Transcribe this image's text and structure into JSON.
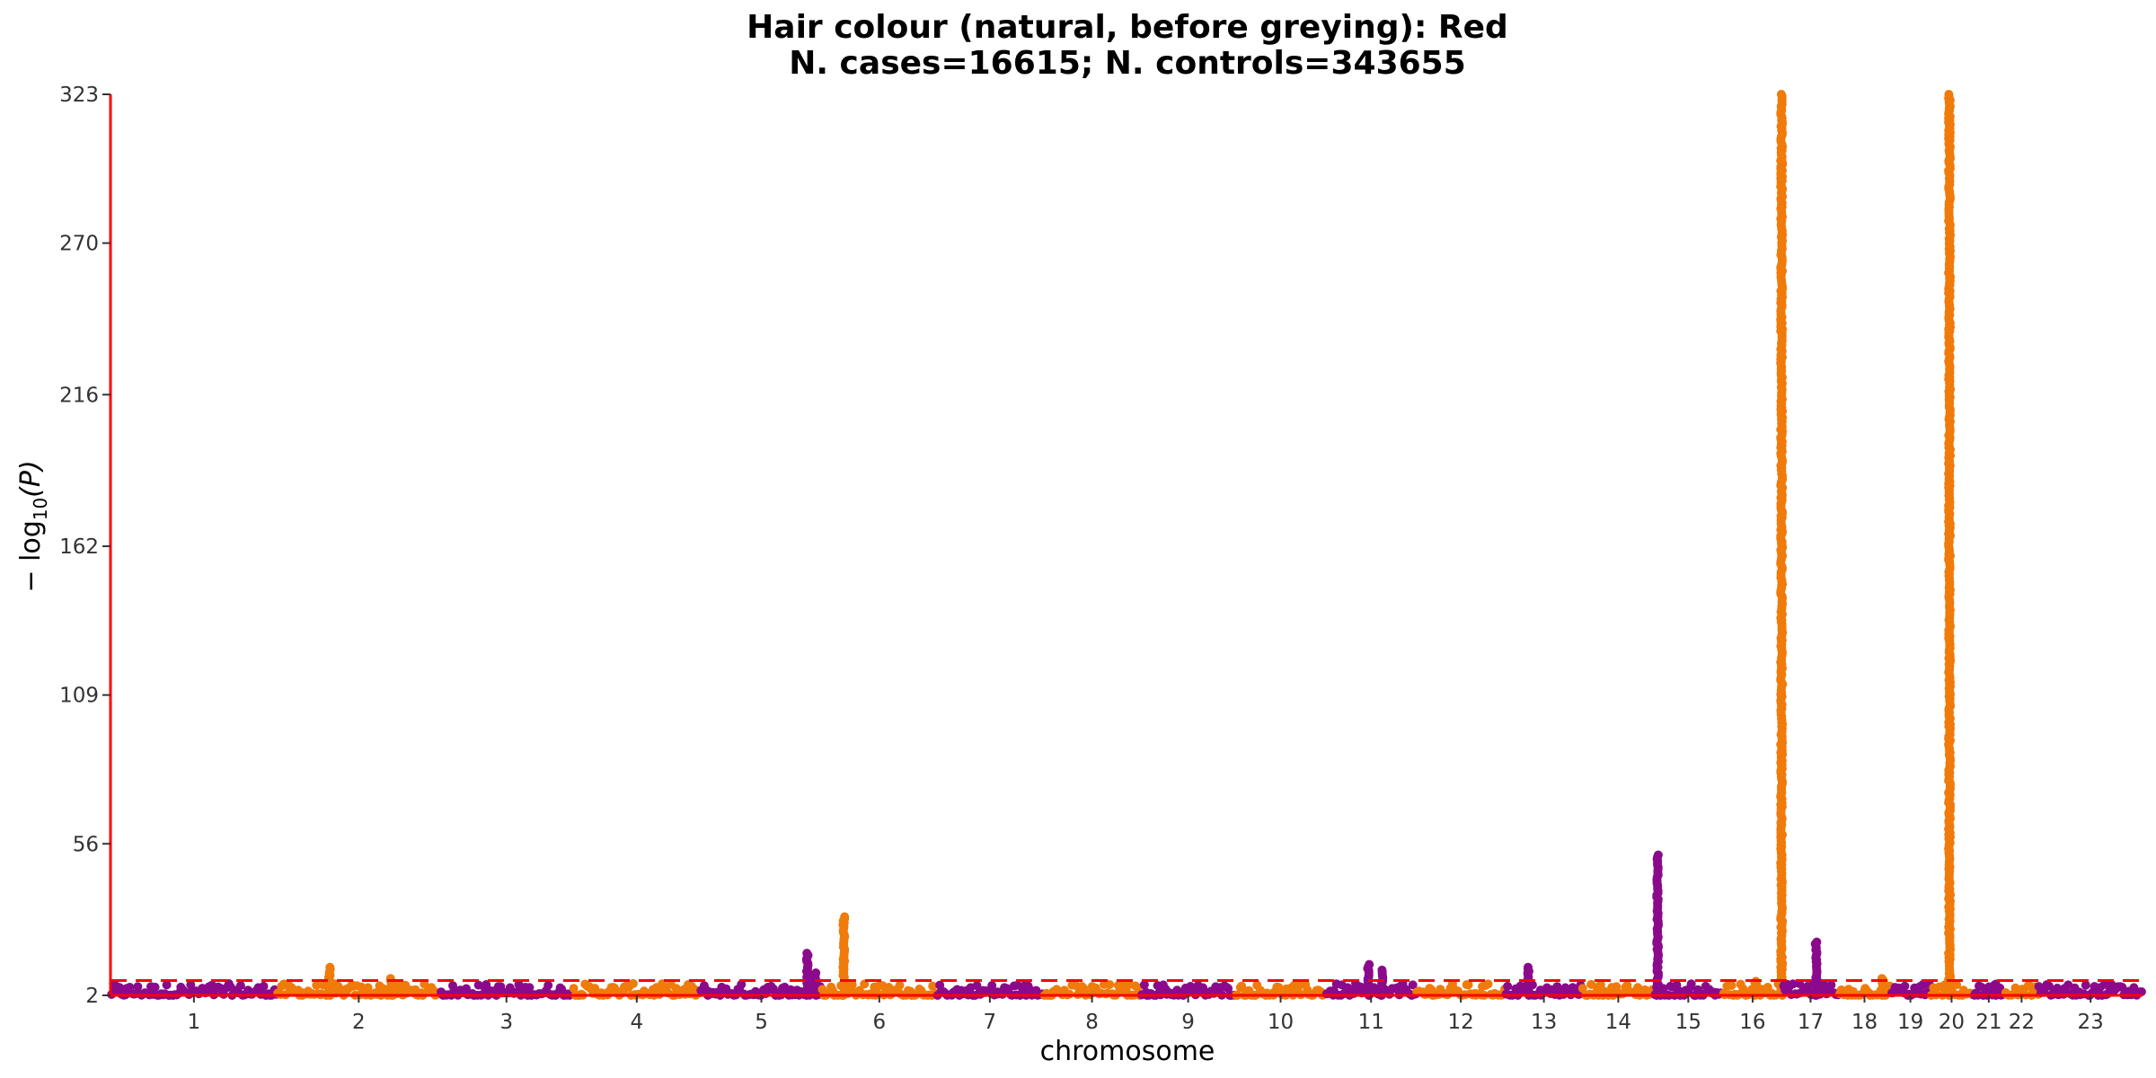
{
  "chart_data": {
    "type": "scatter",
    "title": "Hair colour (natural, before greying): Red",
    "subtitle": "N. cases=16615; N. controls=343655",
    "xlabel": "chromosome",
    "ylabel_main": "− log",
    "ylabel_sub": "10",
    "ylabel_tail": "(P)",
    "ylim": [
      2,
      323
    ],
    "yticks": [
      "2",
      "56",
      "109",
      "162",
      "216",
      "270",
      "323"
    ],
    "threshold": 7.3,
    "grid": false,
    "legend": "none",
    "colors": {
      "odd": "#8b0a8b",
      "even": "#f07a0a",
      "threshold": "#ff0000",
      "axis": "#ff0000"
    },
    "chromosomes": [
      {
        "label": "1",
        "size": 249,
        "peaks": []
      },
      {
        "label": "2",
        "size": 243,
        "peaks": [
          {
            "pos": 0.32,
            "max": 12
          },
          {
            "pos": 0.7,
            "max": 8
          }
        ]
      },
      {
        "label": "3",
        "size": 198,
        "peaks": []
      },
      {
        "label": "4",
        "size": 191,
        "peaks": []
      },
      {
        "label": "5",
        "size": 181,
        "peaks": [
          {
            "pos": 0.88,
            "max": 17
          },
          {
            "pos": 0.95,
            "max": 10
          }
        ]
      },
      {
        "label": "6",
        "size": 171,
        "peaks": [
          {
            "pos": 0.19,
            "max": 30
          }
        ]
      },
      {
        "label": "7",
        "size": 159,
        "peaks": []
      },
      {
        "label": "8",
        "size": 146,
        "peaks": []
      },
      {
        "label": "9",
        "size": 141,
        "peaks": []
      },
      {
        "label": "10",
        "size": 135,
        "peaks": []
      },
      {
        "label": "11",
        "size": 135,
        "peaks": [
          {
            "pos": 0.47,
            "max": 13
          },
          {
            "pos": 0.62,
            "max": 11
          }
        ]
      },
      {
        "label": "12",
        "size": 133,
        "peaks": []
      },
      {
        "label": "13",
        "size": 115,
        "peaks": [
          {
            "pos": 0.3,
            "max": 12
          }
        ]
      },
      {
        "label": "14",
        "size": 107,
        "peaks": []
      },
      {
        "label": "15",
        "size": 102,
        "peaks": [
          {
            "pos": 0.05,
            "max": 52
          }
        ]
      },
      {
        "label": "16",
        "size": 90,
        "peaks": [
          {
            "pos": 0.55,
            "max": 7
          },
          {
            "pos": 0.98,
            "max": 323
          }
        ]
      },
      {
        "label": "17",
        "size": 83,
        "peaks": [
          {
            "pos": 0.6,
            "max": 21
          }
        ]
      },
      {
        "label": "18",
        "size": 78,
        "peaks": [
          {
            "pos": 0.85,
            "max": 8
          }
        ]
      },
      {
        "label": "19",
        "size": 59,
        "peaks": []
      },
      {
        "label": "20",
        "size": 64,
        "peaks": [
          {
            "pos": 0.45,
            "max": 323
          }
        ]
      },
      {
        "label": "21",
        "size": 47,
        "peaks": [
          {
            "pos": 0.7,
            "max": 6
          }
        ]
      },
      {
        "label": "22",
        "size": 51,
        "peaks": []
      },
      {
        "label": "23",
        "size": 155,
        "peaks": []
      }
    ]
  }
}
